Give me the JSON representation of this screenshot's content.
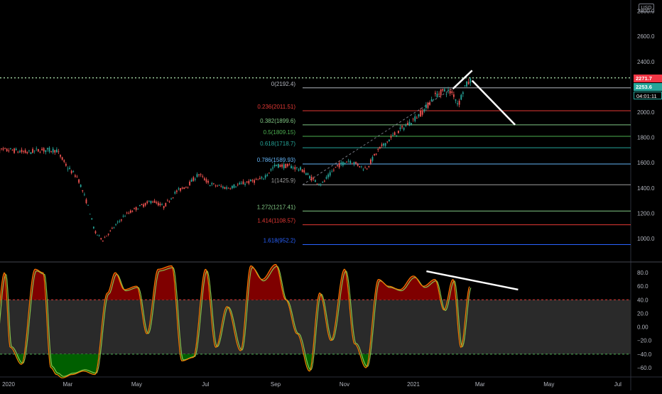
{
  "currency": "USD",
  "price_tags": {
    "last": "2271.7",
    "close": "2253.6",
    "countdown": "04:01:11"
  },
  "colors": {
    "background": "#000000",
    "candle_up": "#26a69a",
    "candle_down": "#ef5350",
    "rsi_line_1": "#f57c00",
    "rsi_line_2": "#8bc34a",
    "overbought_fill": "#7f0000",
    "oversold_fill": "#005f00",
    "band_fill": "#2a2a2a",
    "trendline": "#ffffff"
  },
  "chart_data": [
    {
      "type": "candlestick",
      "title": "",
      "y_axis": {
        "scale": "linear",
        "range": [
          900,
          2850
        ],
        "ticks": [
          1000,
          1200,
          1400,
          1600,
          1800,
          2000,
          2200,
          2400,
          2600,
          2800
        ],
        "tick_labels": [
          "1000.0",
          "1200.0",
          "1400.0",
          "1600.0",
          "1800.0",
          "2000.0",
          "2200.0",
          "2400.0",
          "2600.0",
          "2800.0"
        ]
      },
      "x_axis": {
        "tick_labels": [
          "2020",
          "Mar",
          "May",
          "Jul",
          "Sep",
          "Nov",
          "2021",
          "Mar",
          "May",
          "Jul"
        ]
      },
      "price_path": [
        [
          "2019-12-25",
          1690
        ],
        [
          "2020-01-10",
          1700
        ],
        [
          "2020-01-25",
          1680
        ],
        [
          "2020-02-05",
          1700
        ],
        [
          "2020-02-20",
          1700
        ],
        [
          "2020-03-01",
          1560
        ],
        [
          "2020-03-10",
          1480
        ],
        [
          "2020-03-20",
          1230
        ],
        [
          "2020-03-25",
          1050
        ],
        [
          "2020-04-01",
          990
        ],
        [
          "2020-04-10",
          1080
        ],
        [
          "2020-04-20",
          1180
        ],
        [
          "2020-05-01",
          1240
        ],
        [
          "2020-05-15",
          1300
        ],
        [
          "2020-05-25",
          1250
        ],
        [
          "2020-06-05",
          1370
        ],
        [
          "2020-06-15",
          1420
        ],
        [
          "2020-06-25",
          1510
        ],
        [
          "2020-07-05",
          1430
        ],
        [
          "2020-07-20",
          1400
        ],
        [
          "2020-08-05",
          1440
        ],
        [
          "2020-08-20",
          1470
        ],
        [
          "2020-09-01",
          1580
        ],
        [
          "2020-09-15",
          1570
        ],
        [
          "2020-09-25",
          1540
        ],
        [
          "2020-10-05",
          1460
        ],
        [
          "2020-10-12",
          1430
        ],
        [
          "2020-10-25",
          1570
        ],
        [
          "2020-11-05",
          1620
        ],
        [
          "2020-11-20",
          1550
        ],
        [
          "2020-12-01",
          1700
        ],
        [
          "2020-12-15",
          1820
        ],
        [
          "2021-01-01",
          1940
        ],
        [
          "2021-01-10",
          2010
        ],
        [
          "2021-01-20",
          2130
        ],
        [
          "2021-01-28",
          2170
        ],
        [
          "2021-02-05",
          2150
        ],
        [
          "2021-02-10",
          2060
        ],
        [
          "2021-02-15",
          2200
        ],
        [
          "2021-02-22",
          2260
        ]
      ],
      "fibonacci_levels": [
        {
          "ratio": "0",
          "price": 2192.4,
          "label": "0(2192.4)",
          "color": "#b2b5be"
        },
        {
          "ratio": "0.236",
          "price": 2011.51,
          "label": "0.236(2011.51)",
          "color": "#e53935"
        },
        {
          "ratio": "0.382",
          "price": 1899.6,
          "label": "0.382(1899.6)",
          "color": "#81c784"
        },
        {
          "ratio": "0.5",
          "price": 1809.15,
          "label": "0.5(1809.15)",
          "color": "#4caf50"
        },
        {
          "ratio": "0.618",
          "price": 1718.7,
          "label": "0.618(1718.7)",
          "color": "#26a69a"
        },
        {
          "ratio": "0.786",
          "price": 1589.93,
          "label": "0.786(1589.93)",
          "color": "#64b5f6"
        },
        {
          "ratio": "1",
          "price": 1425.9,
          "label": "1(1425.9)",
          "color": "#9e9e9e"
        },
        {
          "ratio": "1.272",
          "price": 1217.41,
          "label": "1.272(1217.41)",
          "color": "#81c784"
        },
        {
          "ratio": "1.414",
          "price": 1108.57,
          "label": "1.414(1108.57)",
          "color": "#e53935"
        },
        {
          "ratio": "1.618",
          "price": 952.2,
          "label": "1.618(952.2)",
          "color": "#2962ff"
        }
      ],
      "reference_price_line": 2271.7,
      "trendlines": [
        {
          "from": [
            "2021-02-05",
            2185
          ],
          "to": [
            "2021-02-22",
            2330
          ]
        },
        {
          "from": [
            "2021-02-22",
            2250
          ],
          "to": [
            "2021-04-01",
            1900
          ]
        }
      ]
    },
    {
      "type": "line",
      "title": "",
      "y_axis": {
        "range": [
          -72,
          95
        ],
        "ticks": [
          80,
          60,
          40,
          20,
          0,
          -20,
          -40,
          -60
        ],
        "tick_labels": [
          "80.0",
          "60.0",
          "40.0",
          "20.0",
          "0.00",
          "−20.0",
          "−40.0",
          "−60.0"
        ]
      },
      "bands": {
        "upper": 40,
        "lower": -40
      },
      "series": [
        {
          "x": [
            "2019-12-25",
            "2020-01-05",
            "2020-01-10",
            "2020-01-20",
            "2020-02-01",
            "2020-02-08",
            "2020-02-15",
            "2020-02-20",
            "2020-02-25",
            "2020-03-05",
            "2020-03-15",
            "2020-03-25",
            "2020-04-05",
            "2020-04-12",
            "2020-04-20",
            "2020-05-01",
            "2020-05-10",
            "2020-05-20",
            "2020-06-01",
            "2020-06-10",
            "2020-06-20",
            "2020-07-01",
            "2020-07-10",
            "2020-07-20",
            "2020-08-01",
            "2020-08-10",
            "2020-08-20",
            "2020-09-01",
            "2020-09-10",
            "2020-09-20",
            "2020-10-01",
            "2020-10-10",
            "2020-10-20",
            "2020-11-01",
            "2020-11-10",
            "2020-11-20",
            "2020-12-01",
            "2020-12-10",
            "2020-12-20",
            "2021-01-01",
            "2021-01-10",
            "2021-01-20",
            "2021-01-28",
            "2021-02-05",
            "2021-02-12",
            "2021-02-20"
          ],
          "values": [
            -65,
            80,
            -30,
            -55,
            85,
            80,
            -60,
            -70,
            -75,
            -70,
            -65,
            -70,
            50,
            80,
            55,
            60,
            -10,
            85,
            90,
            -50,
            -45,
            85,
            -30,
            30,
            -35,
            90,
            70,
            92,
            40,
            -10,
            -65,
            50,
            -20,
            85,
            -25,
            -60,
            70,
            60,
            55,
            75,
            60,
            70,
            25,
            70,
            -30,
            60
          ]
        }
      ],
      "trendlines": [
        {
          "from": [
            "2021-01-05",
            82
          ],
          "to": [
            "2021-04-10",
            55
          ]
        }
      ]
    }
  ]
}
